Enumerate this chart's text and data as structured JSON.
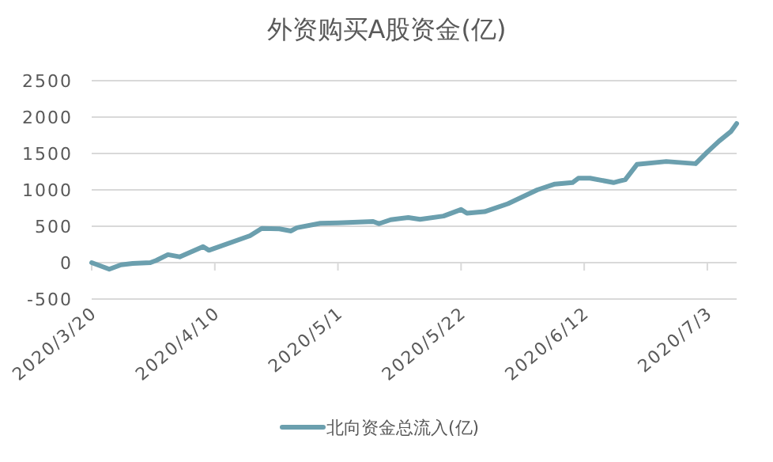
{
  "chart_data": {
    "type": "line",
    "title": "外资购买A股资金(亿)",
    "x": [
      "2020-03-20",
      "2020-03-23",
      "2020-03-25",
      "2020-03-27",
      "2020-03-30",
      "2020-03-31",
      "2020-04-02",
      "2020-04-04",
      "2020-04-08",
      "2020-04-09",
      "2020-04-16",
      "2020-04-18",
      "2020-04-21",
      "2020-04-23",
      "2020-04-24",
      "2020-04-28",
      "2020-05-01",
      "2020-05-07",
      "2020-05-08",
      "2020-05-10",
      "2020-05-13",
      "2020-05-15",
      "2020-05-19",
      "2020-05-22",
      "2020-05-23",
      "2020-05-26",
      "2020-05-30",
      "2020-06-04",
      "2020-06-07",
      "2020-06-10",
      "2020-06-11",
      "2020-06-13",
      "2020-06-17",
      "2020-06-18",
      "2020-06-19",
      "2020-06-21",
      "2020-06-26",
      "2020-07-01",
      "2020-07-03",
      "2020-07-05",
      "2020-07-07",
      "2020-07-08"
    ],
    "series": [
      {
        "name": "北向资金总流入(亿)",
        "color": "#6b9fae",
        "values": [
          0,
          -90,
          -30,
          -10,
          0,
          30,
          110,
          80,
          220,
          170,
          370,
          470,
          465,
          435,
          480,
          540,
          545,
          565,
          535,
          590,
          620,
          595,
          640,
          730,
          680,
          700,
          810,
          1000,
          1080,
          1100,
          1160,
          1160,
          1100,
          1120,
          1140,
          1350,
          1390,
          1360,
          1520,
          1670,
          1800,
          1910
        ]
      }
    ],
    "xlim": [
      "2020-03-20",
      "2020-07-08"
    ],
    "xticks": [
      {
        "value": "2020-03-20",
        "label": "2020/3/20"
      },
      {
        "value": "2020-04-10",
        "label": "2020/4/10"
      },
      {
        "value": "2020-05-01",
        "label": "2020/5/1"
      },
      {
        "value": "2020-05-22",
        "label": "2020/5/22"
      },
      {
        "value": "2020-06-12",
        "label": "2020/6/12"
      },
      {
        "value": "2020-07-03",
        "label": "2020/7/3"
      }
    ],
    "ylim": [
      -500,
      2500
    ],
    "yticks": [
      -500,
      0,
      500,
      1000,
      1500,
      2000,
      2500
    ],
    "grid": "y",
    "legend": "bottom",
    "marker": "none",
    "line_style": "solid"
  }
}
